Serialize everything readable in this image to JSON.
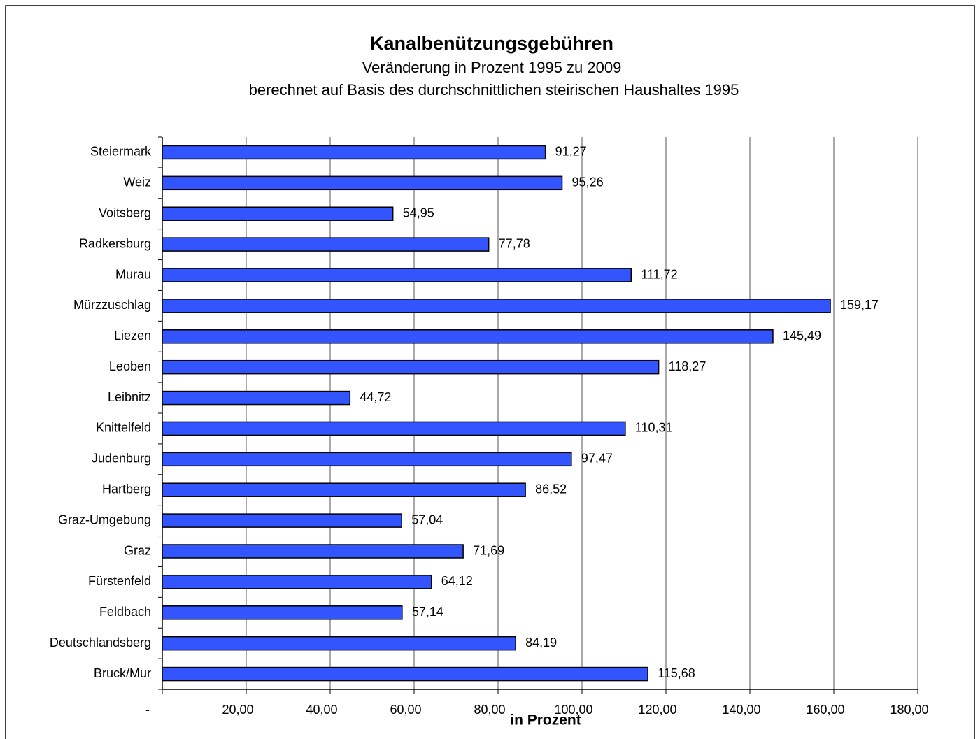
{
  "chart_data": {
    "type": "bar",
    "orientation": "horizontal",
    "title": "Kanalbenützungsgebühren",
    "subtitle": [
      "Veränderung in Prozent 1995 zu 2009",
      "berechnet auf Basis des durchschnittlichen steirischen Haushaltes 1995"
    ],
    "x_label": "in Prozent",
    "categories": [
      "Steiermark",
      "Weiz",
      "Voitsberg",
      "Radkersburg",
      "Murau",
      "Mürzzuschlag",
      "Liezen",
      "Leoben",
      "Leibnitz",
      "Knittelfeld",
      "Judenburg",
      "Hartberg",
      "Graz-Umgebung",
      "Graz",
      "Fürstenfeld",
      "Feldbach",
      "Deutschlandsberg",
      "Bruck/Mur"
    ],
    "values": [
      91.27,
      95.26,
      54.95,
      77.78,
      111.72,
      159.17,
      145.49,
      118.27,
      44.72,
      110.31,
      97.47,
      86.52,
      57.04,
      71.69,
      64.12,
      57.14,
      84.19,
      115.68
    ],
    "value_labels": [
      "91,27",
      "95,26",
      "54,95",
      "77,78",
      "111,72",
      "159,17",
      "145,49",
      "118,27",
      "44,72",
      "110,31",
      "97,47",
      "86,52",
      "57,04",
      "71,69",
      "64,12",
      "57,14",
      "84,19",
      "115,68"
    ],
    "color": "#3355ff",
    "xlim": [
      0,
      180
    ],
    "xticks": [
      {
        "value": 0,
        "label": "-"
      },
      {
        "value": 20,
        "label": "20,00"
      },
      {
        "value": 40,
        "label": "40,00"
      },
      {
        "value": 60,
        "label": "60,00"
      },
      {
        "value": 80,
        "label": "80,00"
      },
      {
        "value": 100,
        "label": "100,00"
      },
      {
        "value": 120,
        "label": "120,00"
      },
      {
        "value": 140,
        "label": "140,00"
      },
      {
        "value": 160,
        "label": "160,00"
      },
      {
        "value": 180,
        "label": "180,00"
      }
    ],
    "grid": true
  }
}
